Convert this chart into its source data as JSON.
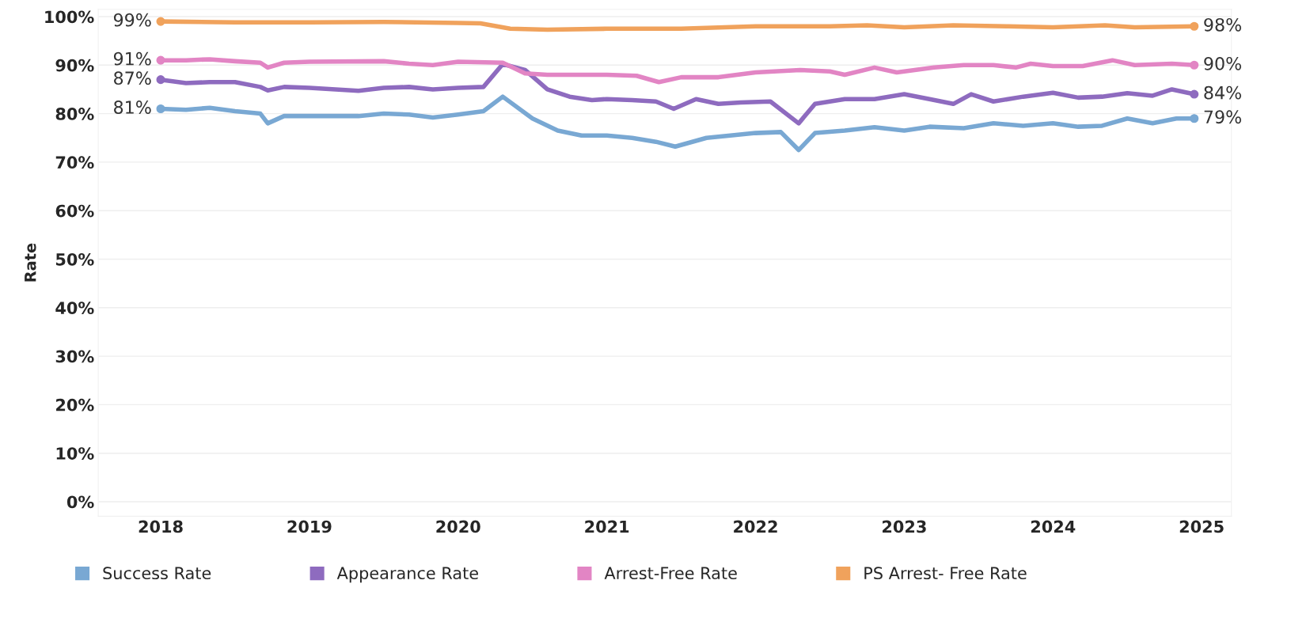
{
  "chart_data": {
    "type": "line",
    "ylabel": "Rate",
    "xlim": [
      2017.58,
      2025.2
    ],
    "xticks": [
      2018,
      2019,
      2020,
      2021,
      2022,
      2023,
      2024,
      2025
    ],
    "ylim": [
      -3,
      101.5
    ],
    "yticks": [
      {
        "value": 0,
        "label": "0%"
      },
      {
        "value": 10,
        "label": "10%"
      },
      {
        "value": 20,
        "label": "20%"
      },
      {
        "value": 30,
        "label": "30%"
      },
      {
        "value": 40,
        "label": "40%"
      },
      {
        "value": 50,
        "label": "50%"
      },
      {
        "value": 60,
        "label": "60%"
      },
      {
        "value": 70,
        "label": "70%"
      },
      {
        "value": 80,
        "label": "80%"
      },
      {
        "value": 90,
        "label": "90%"
      },
      {
        "value": 100,
        "label": "100%"
      }
    ],
    "grid": "y",
    "legend": "bottom",
    "line_style": "solid",
    "series": [
      {
        "name": "Success Rate",
        "color": "#79a8d3",
        "x": [
          2018.0,
          2018.17,
          2018.33,
          2018.5,
          2018.67,
          2018.72,
          2018.83,
          2019.0,
          2019.33,
          2019.5,
          2019.67,
          2019.83,
          2020.0,
          2020.17,
          2020.3,
          2020.5,
          2020.67,
          2020.83,
          2021.0,
          2021.17,
          2021.33,
          2021.46,
          2021.67,
          2021.83,
          2022.0,
          2022.17,
          2022.29,
          2022.4,
          2022.6,
          2022.8,
          2023.0,
          2023.17,
          2023.4,
          2023.6,
          2023.8,
          2024.0,
          2024.17,
          2024.33,
          2024.5,
          2024.67,
          2024.83,
          2024.95
        ],
        "values": [
          81,
          80.8,
          81.2,
          80.5,
          80,
          78,
          79.5,
          79.5,
          79.5,
          80,
          79.8,
          79.2,
          79.8,
          80.5,
          83.5,
          79,
          76.5,
          75.5,
          75.5,
          75,
          74.2,
          73.2,
          75,
          75.5,
          76,
          76.2,
          72.5,
          76,
          76.5,
          77.2,
          76.5,
          77.3,
          77,
          78,
          77.5,
          78,
          77.3,
          77.5,
          79,
          78,
          79,
          79
        ],
        "value_labels": [
          "81%",
          null,
          null,
          null,
          null,
          null,
          null,
          null,
          null,
          null,
          null,
          null,
          null,
          null,
          null,
          null,
          null,
          null,
          null,
          null,
          null,
          null,
          null,
          null,
          null,
          null,
          null,
          null,
          null,
          null,
          null,
          null,
          null,
          null,
          null,
          null,
          null,
          null,
          null,
          null,
          null,
          "79%"
        ]
      },
      {
        "name": "Appearance Rate",
        "color": "#8e6bbf",
        "x": [
          2018.0,
          2018.17,
          2018.33,
          2018.5,
          2018.67,
          2018.72,
          2018.83,
          2019.0,
          2019.33,
          2019.5,
          2019.67,
          2019.83,
          2020.0,
          2020.17,
          2020.3,
          2020.45,
          2020.6,
          2020.75,
          2020.9,
          2021.0,
          2021.17,
          2021.33,
          2021.45,
          2021.6,
          2021.75,
          2021.9,
          2022.1,
          2022.29,
          2022.4,
          2022.6,
          2022.8,
          2023.0,
          2023.17,
          2023.33,
          2023.45,
          2023.6,
          2023.8,
          2024.0,
          2024.17,
          2024.33,
          2024.5,
          2024.67,
          2024.8,
          2024.95
        ],
        "values": [
          87,
          86.3,
          86.5,
          86.5,
          85.5,
          84.8,
          85.5,
          85.3,
          84.7,
          85.3,
          85.5,
          85,
          85.3,
          85.5,
          90.2,
          89,
          85,
          83.5,
          82.8,
          83,
          82.8,
          82.5,
          81,
          83,
          82,
          82.3,
          82.5,
          78,
          82,
          83,
          83,
          84,
          83,
          82,
          84,
          82.5,
          83.5,
          84.3,
          83.3,
          83.5,
          84.2,
          83.7,
          85,
          84
        ],
        "value_labels": [
          "87%",
          null,
          null,
          null,
          null,
          null,
          null,
          null,
          null,
          null,
          null,
          null,
          null,
          null,
          null,
          null,
          null,
          null,
          null,
          null,
          null,
          null,
          null,
          null,
          null,
          null,
          null,
          null,
          null,
          null,
          null,
          null,
          null,
          null,
          null,
          null,
          null,
          null,
          null,
          null,
          null,
          null,
          null,
          "84%"
        ]
      },
      {
        "name": "Arrest-Free Rate",
        "color": "#e285c4",
        "x": [
          2018.0,
          2018.17,
          2018.33,
          2018.5,
          2018.67,
          2018.72,
          2018.83,
          2019.0,
          2019.5,
          2019.67,
          2019.83,
          2020.0,
          2020.3,
          2020.45,
          2020.6,
          2020.83,
          2021.0,
          2021.2,
          2021.35,
          2021.5,
          2021.75,
          2022.0,
          2022.3,
          2022.5,
          2022.6,
          2022.8,
          2022.95,
          2023.2,
          2023.4,
          2023.6,
          2023.75,
          2023.85,
          2024.0,
          2024.2,
          2024.4,
          2024.55,
          2024.8,
          2024.95
        ],
        "values": [
          91,
          91,
          91.2,
          90.8,
          90.5,
          89.5,
          90.5,
          90.7,
          90.8,
          90.3,
          90,
          90.7,
          90.5,
          88.3,
          88,
          88,
          88,
          87.8,
          86.5,
          87.5,
          87.5,
          88.5,
          89,
          88.7,
          88,
          89.5,
          88.5,
          89.5,
          90,
          90,
          89.5,
          90.3,
          89.8,
          89.8,
          91,
          90,
          90.3,
          90
        ],
        "value_labels": [
          "91%",
          null,
          null,
          null,
          null,
          null,
          null,
          null,
          null,
          null,
          null,
          null,
          null,
          null,
          null,
          null,
          null,
          null,
          null,
          null,
          null,
          null,
          null,
          null,
          null,
          null,
          null,
          null,
          null,
          null,
          null,
          null,
          null,
          null,
          null,
          null,
          null,
          "90%"
        ]
      },
      {
        "name": "PS Arrest- Free Rate",
        "color": "#f0a25c",
        "x": [
          2018.0,
          2018.5,
          2019.0,
          2019.5,
          2020.0,
          2020.15,
          2020.35,
          2020.6,
          2021.0,
          2021.5,
          2022.0,
          2022.5,
          2022.75,
          2023.0,
          2023.33,
          2023.7,
          2024.0,
          2024.35,
          2024.55,
          2024.95
        ],
        "values": [
          99,
          98.8,
          98.8,
          98.9,
          98.7,
          98.6,
          97.5,
          97.3,
          97.5,
          97.5,
          98,
          98,
          98.2,
          97.8,
          98.2,
          98,
          97.8,
          98.2,
          97.8,
          98
        ],
        "value_labels": [
          "99%",
          null,
          null,
          null,
          null,
          null,
          null,
          null,
          null,
          null,
          null,
          null,
          null,
          null,
          null,
          null,
          null,
          null,
          null,
          "98%"
        ]
      }
    ]
  }
}
